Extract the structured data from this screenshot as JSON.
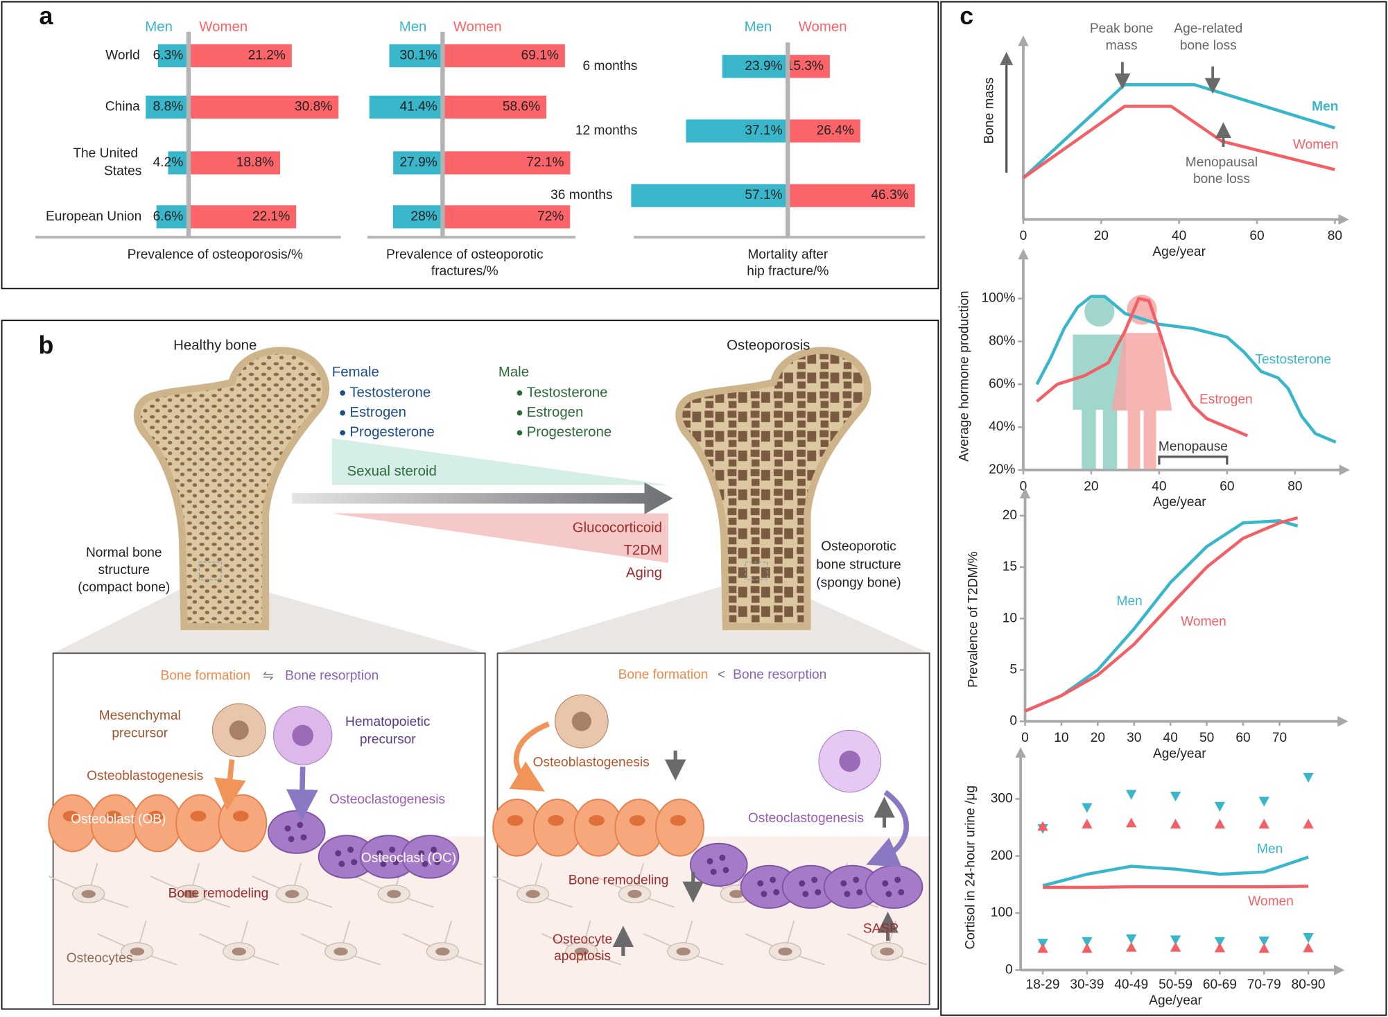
{
  "panel_labels": [
    "a",
    "b",
    "c"
  ],
  "chart_data": [
    {
      "type": "bar",
      "title": [
        "Prevalence of osteoporosis/%"
      ],
      "categories": [
        "World",
        "China",
        "The United States",
        "European Union"
      ],
      "series": [
        {
          "name": "Men",
          "color": "#39b6c9",
          "values": [
            6.3,
            8.8,
            4.2,
            6.6
          ],
          "value_labels": [
            "6.3%",
            "8.8%",
            "4.2%",
            "6.6%"
          ]
        },
        {
          "name": "Women",
          "color": "#fb6469",
          "values": [
            21.2,
            30.8,
            18.8,
            22.1
          ],
          "value_labels": [
            "21.2%",
            "30.8%",
            "18.8%",
            "22.1%"
          ]
        }
      ]
    },
    {
      "type": "bar",
      "title": [
        "Prevalence of osteoporotic",
        "fractures/%"
      ],
      "series": [
        {
          "name": "Men",
          "color": "#39b6c9",
          "values": [
            30.1,
            41.4,
            27.9,
            28
          ],
          "value_labels": [
            "30.1%",
            "41.4%",
            "27.9%",
            "28%"
          ]
        },
        {
          "name": "Women",
          "color": "#fb6469",
          "values": [
            69.1,
            58.6,
            72.1,
            72
          ],
          "value_labels": [
            "69.1%",
            "58.6%",
            "72.1%",
            "72%"
          ]
        }
      ]
    },
    {
      "type": "bar",
      "title": [
        "Mortality after",
        "hip fracture/%"
      ],
      "categories": [
        "6 months",
        "12 months",
        "36 months"
      ],
      "series": [
        {
          "name": "Men",
          "color": "#39b6c9",
          "values": [
            23.9,
            37.1,
            57.1
          ],
          "value_labels": [
            "23.9%",
            "37.1%",
            "57.1%"
          ]
        },
        {
          "name": "Women",
          "color": "#fb6469",
          "values": [
            15.3,
            26.4,
            46.3
          ],
          "value_labels": [
            "15.3%",
            "26.4%",
            "46.3%"
          ]
        }
      ]
    },
    {
      "type": "line",
      "ylabel": "Bone mass",
      "xlabel": "Age/year",
      "xlim": [
        0,
        80
      ],
      "xticks": [
        0,
        20,
        40,
        60,
        80
      ],
      "ylim": [
        0,
        100
      ],
      "annotations": [
        [
          "Peak bone",
          "mass"
        ],
        [
          "Age-related",
          "bone loss"
        ],
        [
          "Menopausal",
          "bone loss"
        ]
      ],
      "series": [
        {
          "name": "Men",
          "color": "#39b6c9",
          "x": [
            0,
            26,
            44,
            80
          ],
          "values": [
            25,
            81,
            81,
            55
          ]
        },
        {
          "name": "Women",
          "color": "#f26065",
          "x": [
            0,
            26,
            38,
            51,
            80
          ],
          "values": [
            25,
            68,
            68,
            47,
            30
          ]
        }
      ]
    },
    {
      "type": "line",
      "ylabel": "Average hormone production",
      "xlabel": "Age/year",
      "xlim": [
        0,
        92
      ],
      "xticks": [
        0,
        20,
        40,
        60,
        80
      ],
      "ylim": [
        20,
        115
      ],
      "yticks": [
        {
          "value": 20,
          "label": "20%"
        },
        {
          "value": 40,
          "label": "40%"
        },
        {
          "value": 60,
          "label": "60%"
        },
        {
          "value": 80,
          "label": "80%"
        },
        {
          "value": 100,
          "label": "100%"
        }
      ],
      "annotations": [
        "Menopause"
      ],
      "series": [
        {
          "name": "Testosterone",
          "color": "#39b6c9",
          "x": [
            4,
            8,
            12,
            16,
            20,
            24,
            30,
            40,
            50,
            60,
            65,
            70,
            75,
            78,
            82,
            86,
            92
          ],
          "values": [
            60,
            72,
            86,
            96,
            101,
            101,
            93,
            88,
            86,
            82,
            75,
            66,
            63,
            58,
            45,
            37,
            33
          ]
        },
        {
          "name": "Estrogen",
          "color": "#f26065",
          "x": [
            4,
            10,
            18,
            25,
            30,
            34,
            37,
            40,
            44,
            50,
            54,
            60,
            66
          ],
          "values": [
            52,
            60,
            64,
            70,
            85,
            100,
            99,
            85,
            65,
            50,
            44,
            40,
            36
          ]
        }
      ]
    },
    {
      "type": "line",
      "ylabel": "Prevalence  of T2DM/%",
      "xlabel": "Age/year",
      "xlim": [
        0,
        85
      ],
      "xticks": [
        0,
        10,
        20,
        30,
        40,
        50,
        60,
        70
      ],
      "ylim": [
        0,
        21
      ],
      "yticks": [
        0,
        5,
        10,
        15,
        20
      ],
      "series": [
        {
          "name": "Men",
          "color": "#39b6c9",
          "x": [
            0,
            10,
            20,
            30,
            40,
            50,
            60,
            70,
            75
          ],
          "values": [
            1,
            2.5,
            5,
            9,
            13.5,
            17,
            19.3,
            19.5,
            19
          ]
        },
        {
          "name": "Women",
          "color": "#f26065",
          "x": [
            0,
            10,
            20,
            30,
            40,
            50,
            60,
            70,
            75
          ],
          "values": [
            1,
            2.5,
            4.5,
            7.5,
            11.3,
            15,
            17.8,
            19.3,
            19.8
          ]
        }
      ]
    },
    {
      "type": "line",
      "ylabel": "Cortisol in 24-hour urine /μg",
      "xlabel": "Age/year",
      "categories": [
        "18-29",
        "30-39",
        "40-49",
        "50-59",
        "60-69",
        "70-79",
        "80-90"
      ],
      "ylim": [
        0,
        360
      ],
      "yticks": [
        0,
        100,
        200,
        300
      ],
      "series": [
        {
          "name": "Men",
          "color": "#39b6c9",
          "values": [
            148,
            168,
            182,
            177,
            168,
            172,
            198
          ],
          "upper": [
            248,
            285,
            308,
            305,
            287,
            296,
            338
          ],
          "lower": [
            47,
            50,
            55,
            53,
            50,
            51,
            57
          ]
        },
        {
          "name": "Women",
          "color": "#f26065",
          "values": [
            145,
            145,
            146,
            146,
            146,
            146,
            147
          ],
          "upper": [
            252,
            256,
            258,
            256,
            256,
            256,
            256
          ],
          "lower": [
            38,
            38,
            40,
            40,
            39,
            38,
            39
          ]
        }
      ]
    }
  ],
  "diagram": {
    "healthy_bone": "Healthy bone",
    "osteoporosis": "Osteoporosis",
    "female": "Female",
    "female_items": [
      "Testosterone",
      "Estrogen",
      "Progesterone"
    ],
    "male": "Male",
    "male_items": [
      "Testosterone",
      "Estrogen",
      "Progesterone"
    ],
    "sexual_steroid": "Sexual steroid",
    "risk_factors": [
      "Glucocorticoid",
      "T2DM",
      "Aging"
    ],
    "normal_structure": [
      "Normal bone",
      "structure",
      "(compact bone)"
    ],
    "osteoporotic_structure": [
      "Osteoporotic",
      "bone structure",
      "(spongy bone)"
    ],
    "left_inset": {
      "formation": "Bone formation",
      "relation": "⇋",
      "resorption": "Bone resorption",
      "mesenchymal": [
        "Mesenchymal",
        "precursor"
      ],
      "hematopoietic": [
        "Hematopoietic",
        "precursor"
      ],
      "osteoblastogenesis": "Osteoblastogenesis",
      "osteoclastogenesis": "Osteoclastogenesis",
      "osteoblast": "Osteoblast (OB)",
      "osteoclast": "Osteoclast (OC)",
      "remodeling": "Bone remodeling",
      "osteocytes": "Osteocytes"
    },
    "right_inset": {
      "formation": "Bone formation",
      "relation": "<",
      "resorption": "Bone resorption",
      "osteoblastogenesis": "Osteoblastogenesis",
      "osteoclastogenesis": "Osteoclastogenesis",
      "remodeling": "Bone remodeling",
      "apoptosis": [
        "Osteocyte",
        "apoptosis"
      ],
      "sasp": "SASP"
    }
  }
}
